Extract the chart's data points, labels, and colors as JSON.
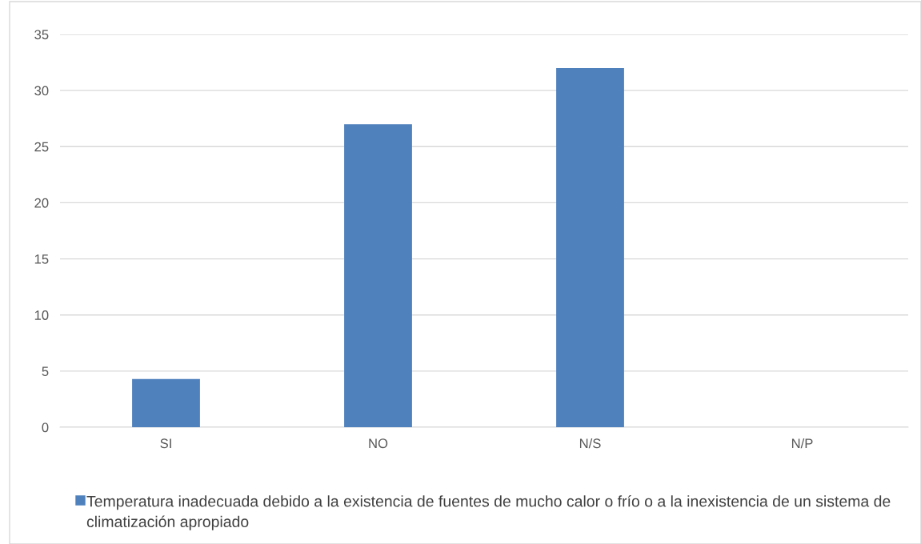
{
  "chart_data": {
    "type": "bar",
    "categories": [
      "SI",
      "NO",
      "N/S",
      "N/P"
    ],
    "series": [
      {
        "name": "Temperatura inadecuada debido a la existencia de fuentes de mucho calor o frío o a la inexistencia de un sistema de climatización apropiado",
        "color": "#4f81bd",
        "values": [
          4.3,
          27,
          32,
          0
        ]
      }
    ],
    "ylim": [
      0,
      35
    ],
    "yticks": [
      0,
      5,
      10,
      15,
      20,
      25,
      30,
      35
    ],
    "grid": "y",
    "legend": "bottom"
  }
}
